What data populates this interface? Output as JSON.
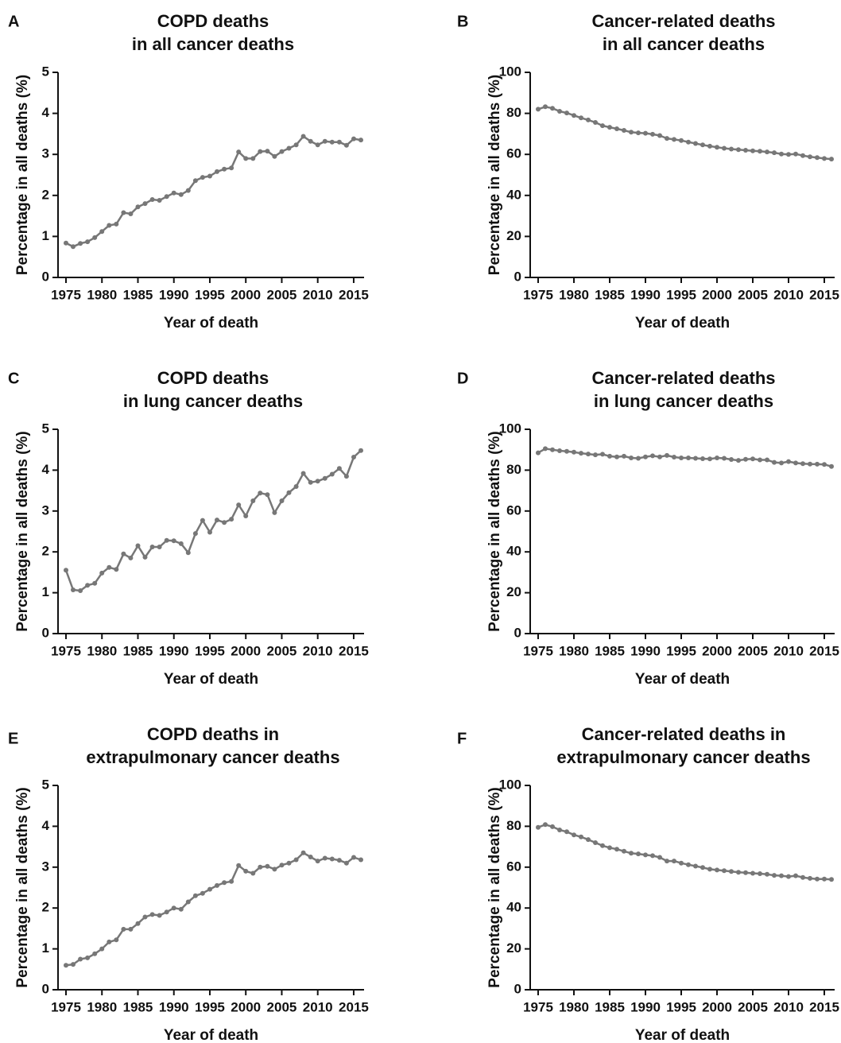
{
  "colors": {
    "line": "#777777",
    "axis": "#111111"
  },
  "chart_data": [
    {
      "panel": "A",
      "type": "line",
      "title": [
        "COPD deaths",
        "in all cancer deaths"
      ],
      "xlabel": "Year of death",
      "ylabel": "Percentage in all deaths (%)",
      "xlim": [
        1974,
        2017
      ],
      "ylim": [
        0,
        5
      ],
      "xticks": [
        1975,
        1980,
        1985,
        1990,
        1995,
        2000,
        2005,
        2010,
        2015
      ],
      "yticks": [
        0,
        1,
        2,
        3,
        4,
        5
      ],
      "series": [
        {
          "x_start": 1975,
          "x_step": 1,
          "values": [
            0.84,
            0.75,
            0.83,
            0.87,
            0.97,
            1.12,
            1.27,
            1.3,
            1.58,
            1.55,
            1.72,
            1.8,
            1.9,
            1.88,
            1.97,
            2.06,
            2.02,
            2.12,
            2.36,
            2.44,
            2.47,
            2.58,
            2.64,
            2.67,
            3.06,
            2.9,
            2.9,
            3.07,
            3.08,
            2.95,
            3.07,
            3.15,
            3.23,
            3.44,
            3.32,
            3.23,
            3.32,
            3.3,
            3.3,
            3.22,
            3.38,
            3.35
          ]
        }
      ]
    },
    {
      "panel": "B",
      "type": "line",
      "title": [
        "Cancer-related deaths",
        "in all cancer deaths"
      ],
      "xlabel": "Year of death",
      "ylabel": "Percentage in all deaths (%)",
      "xlim": [
        1974,
        2017
      ],
      "ylim": [
        0,
        100
      ],
      "xticks": [
        1975,
        1980,
        1985,
        1990,
        1995,
        2000,
        2005,
        2010,
        2015
      ],
      "yticks": [
        0,
        20,
        40,
        60,
        80,
        100
      ],
      "series": [
        {
          "x_start": 1975,
          "x_step": 1,
          "values": [
            82.0,
            83.2,
            82.5,
            81.0,
            80.2,
            79.0,
            77.8,
            76.8,
            75.6,
            74.0,
            73.2,
            72.5,
            71.7,
            70.8,
            70.5,
            70.3,
            69.8,
            69.2,
            67.8,
            67.3,
            66.8,
            66.0,
            65.3,
            64.6,
            64.0,
            63.5,
            63.0,
            62.6,
            62.3,
            62.0,
            61.7,
            61.5,
            61.2,
            60.8,
            60.2,
            60.0,
            60.2,
            59.4,
            58.8,
            58.4,
            58.0,
            57.7
          ]
        }
      ]
    },
    {
      "panel": "C",
      "type": "line",
      "title": [
        "COPD deaths",
        "in lung cancer deaths"
      ],
      "xlabel": "Year of death",
      "ylabel": "Percentage in all deaths (%)",
      "xlim": [
        1974,
        2017
      ],
      "ylim": [
        0,
        5
      ],
      "xticks": [
        1975,
        1980,
        1985,
        1990,
        1995,
        2000,
        2005,
        2010,
        2015
      ],
      "yticks": [
        0,
        1,
        2,
        3,
        4,
        5
      ],
      "series": [
        {
          "x_start": 1975,
          "x_step": 1,
          "values": [
            1.55,
            1.07,
            1.05,
            1.18,
            1.23,
            1.48,
            1.62,
            1.57,
            1.95,
            1.85,
            2.15,
            1.87,
            2.12,
            2.12,
            2.28,
            2.27,
            2.2,
            1.98,
            2.45,
            2.77,
            2.48,
            2.78,
            2.72,
            2.8,
            3.15,
            2.88,
            3.25,
            3.44,
            3.4,
            2.96,
            3.25,
            3.45,
            3.6,
            3.92,
            3.7,
            3.73,
            3.8,
            3.9,
            4.04,
            3.85,
            4.32,
            4.48
          ]
        }
      ]
    },
    {
      "panel": "D",
      "type": "line",
      "title": [
        "Cancer-related deaths",
        "in lung cancer deaths"
      ],
      "xlabel": "Year of death",
      "ylabel": "Percentage in all deaths (%)",
      "xlim": [
        1974,
        2017
      ],
      "ylim": [
        0,
        100
      ],
      "xticks": [
        1975,
        1980,
        1985,
        1990,
        1995,
        2000,
        2005,
        2010,
        2015
      ],
      "yticks": [
        0,
        20,
        40,
        60,
        80,
        100
      ],
      "series": [
        {
          "x_start": 1975,
          "x_step": 1,
          "values": [
            88.5,
            90.5,
            90.0,
            89.5,
            89.2,
            88.8,
            88.3,
            87.9,
            87.5,
            87.8,
            86.8,
            86.5,
            86.8,
            86.0,
            85.8,
            86.5,
            87.0,
            86.5,
            87.2,
            86.4,
            86.0,
            86.0,
            85.8,
            85.6,
            85.5,
            86.0,
            85.8,
            85.2,
            84.8,
            85.3,
            85.5,
            85.0,
            85.0,
            83.8,
            83.5,
            84.2,
            83.5,
            83.2,
            83.0,
            82.9,
            82.8,
            81.8
          ]
        }
      ]
    },
    {
      "panel": "E",
      "type": "line",
      "title": [
        "COPD deaths in",
        "extrapulmonary cancer deaths"
      ],
      "xlabel": "Year of death",
      "ylabel": "Percentage in all deaths (%)",
      "xlim": [
        1974,
        2017
      ],
      "ylim": [
        0,
        5
      ],
      "xticks": [
        1975,
        1980,
        1985,
        1990,
        1995,
        2000,
        2005,
        2010,
        2015
      ],
      "yticks": [
        0,
        1,
        2,
        3,
        4,
        5
      ],
      "series": [
        {
          "x_start": 1975,
          "x_step": 1,
          "values": [
            0.6,
            0.62,
            0.75,
            0.78,
            0.88,
            1.0,
            1.17,
            1.22,
            1.48,
            1.48,
            1.62,
            1.78,
            1.84,
            1.82,
            1.9,
            2.0,
            1.97,
            2.15,
            2.3,
            2.36,
            2.46,
            2.55,
            2.62,
            2.65,
            3.04,
            2.9,
            2.85,
            3.0,
            3.02,
            2.95,
            3.05,
            3.1,
            3.18,
            3.35,
            3.25,
            3.15,
            3.22,
            3.2,
            3.17,
            3.1,
            3.24,
            3.18
          ]
        }
      ]
    },
    {
      "panel": "F",
      "type": "line",
      "title": [
        "Cancer-related deaths in",
        "extrapulmonary cancer deaths"
      ],
      "xlabel": "Year of death",
      "ylabel": "Percentage in all deaths (%)",
      "xlim": [
        1974,
        2017
      ],
      "ylim": [
        0,
        100
      ],
      "xticks": [
        1975,
        1980,
        1985,
        1990,
        1995,
        2000,
        2005,
        2010,
        2015
      ],
      "yticks": [
        0,
        20,
        40,
        60,
        80,
        100
      ],
      "series": [
        {
          "x_start": 1975,
          "x_step": 1,
          "values": [
            79.5,
            80.8,
            79.8,
            78.2,
            77.3,
            75.8,
            74.8,
            73.5,
            72.0,
            70.5,
            69.5,
            68.8,
            67.8,
            66.8,
            66.5,
            66.0,
            65.6,
            64.8,
            63.0,
            63.0,
            62.0,
            61.2,
            60.5,
            59.8,
            59.0,
            58.6,
            58.3,
            57.9,
            57.5,
            57.3,
            57.0,
            56.8,
            56.5,
            56.0,
            55.8,
            55.4,
            55.8,
            55.0,
            54.5,
            54.2,
            54.2,
            54.0
          ]
        }
      ]
    }
  ]
}
